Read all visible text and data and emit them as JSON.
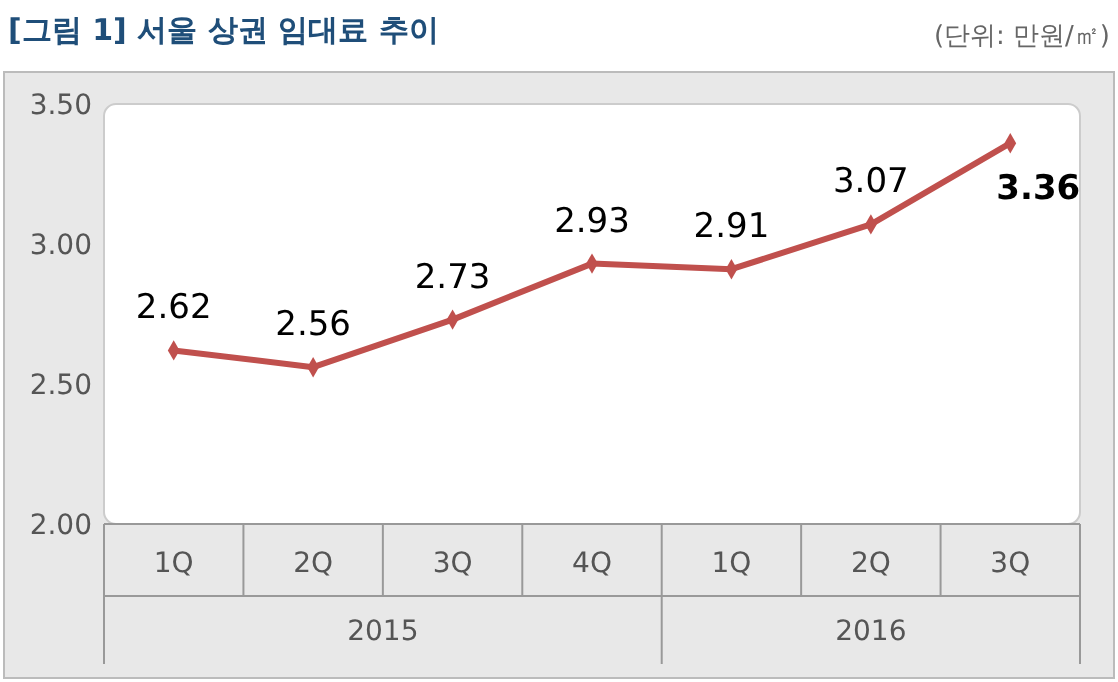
{
  "chart_data": {
    "type": "line",
    "title": "[그림 1] 서울 상권 임대료 추이",
    "subtitle": "(단위: 만원/㎡)",
    "categories": [
      "1Q",
      "2Q",
      "3Q",
      "4Q",
      "1Q",
      "2Q",
      "3Q"
    ],
    "series": [
      {
        "color": "#c0504d",
        "values": [
          2.62,
          2.56,
          2.73,
          2.93,
          2.91,
          3.07,
          3.36
        ]
      }
    ],
    "annotations": [
      "2015",
      "2016"
    ],
    "ylim": [
      2.0,
      3.5
    ],
    "yticks": [
      {
        "value": 2.0,
        "label": "2.00"
      },
      {
        "value": 2.5,
        "label": "2.50"
      },
      {
        "value": 3.0,
        "label": "3.00"
      },
      {
        "value": 3.5,
        "label": "3.50"
      }
    ],
    "grid": false,
    "marker": "diamond",
    "line_style": "solid",
    "data_labels": true
  }
}
